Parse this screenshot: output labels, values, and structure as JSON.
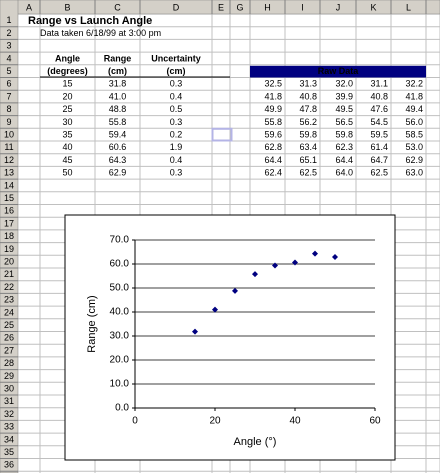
{
  "spreadsheet": {
    "column_headers": [
      "A",
      "B",
      "C",
      "D",
      "E",
      "G",
      "H",
      "I",
      "J",
      "K",
      "L"
    ],
    "row_numbers": [
      1,
      2,
      3,
      4,
      5,
      6,
      7,
      8,
      9,
      10,
      11,
      12,
      13,
      14,
      15,
      16,
      17,
      18,
      19,
      20,
      21,
      22,
      23,
      24,
      25,
      26,
      27,
      28,
      29,
      30,
      31,
      32,
      33,
      34,
      35,
      36
    ],
    "title": "Range vs Launch Angle",
    "note": "Data taken 6/18/99 at 3:00 pm",
    "table": {
      "headers": [
        [
          "Angle",
          "(degrees)"
        ],
        [
          "Range",
          "(cm)"
        ],
        [
          "Uncertainty",
          "(cm)"
        ]
      ],
      "raw_data_header": "Raw Data",
      "rows": [
        [
          "15",
          "31.8",
          "0.3",
          "32.5",
          "31.3",
          "32.0",
          "31.1",
          "32.2"
        ],
        [
          "20",
          "41.0",
          "0.4",
          "41.8",
          "40.8",
          "39.9",
          "40.8",
          "41.8"
        ],
        [
          "25",
          "48.8",
          "0.5",
          "49.9",
          "47.8",
          "49.5",
          "47.6",
          "49.4"
        ],
        [
          "30",
          "55.8",
          "0.3",
          "55.8",
          "56.2",
          "56.5",
          "54.5",
          "56.0"
        ],
        [
          "35",
          "59.4",
          "0.2",
          "59.6",
          "59.8",
          "59.8",
          "59.5",
          "58.5"
        ],
        [
          "40",
          "60.6",
          "1.9",
          "62.8",
          "63.4",
          "62.3",
          "61.4",
          "53.0"
        ],
        [
          "45",
          "64.3",
          "0.4",
          "64.4",
          "65.1",
          "64.4",
          "64.7",
          "62.9"
        ],
        [
          "50",
          "62.9",
          "0.3",
          "62.4",
          "62.5",
          "64.0",
          "62.5",
          "63.0"
        ]
      ]
    }
  },
  "chart_data": {
    "type": "scatter",
    "x": [
      15,
      20,
      25,
      30,
      35,
      40,
      45,
      50
    ],
    "series": [
      {
        "color": "#000080",
        "values": [
          31.8,
          41.0,
          48.8,
          55.8,
          59.4,
          60.6,
          64.3,
          62.9
        ]
      }
    ],
    "xlabel": "Angle (°)",
    "ylabel": "Range (cm)",
    "xlim": [
      0,
      60
    ],
    "ylim": [
      0,
      70
    ],
    "xticks": [
      0,
      20,
      40,
      60
    ],
    "yticks": [
      {
        "value": 0,
        "label": "0.0"
      },
      {
        "value": 10,
        "label": "10.0"
      },
      {
        "value": 20,
        "label": "20.0"
      },
      {
        "value": 30,
        "label": "30.0"
      },
      {
        "value": 40,
        "label": "40.0"
      },
      {
        "value": 50,
        "label": "50.0"
      },
      {
        "value": 60,
        "label": "60.0"
      },
      {
        "value": 70,
        "label": "70.0"
      }
    ],
    "grid": true
  }
}
